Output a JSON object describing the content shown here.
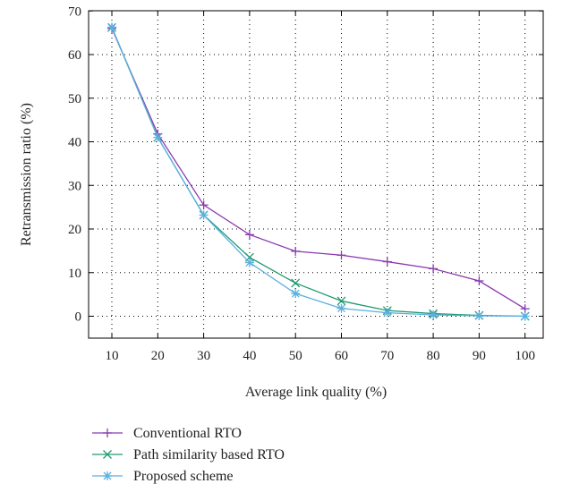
{
  "chart_data": {
    "type": "line",
    "xlabel": "Average link quality (%)",
    "ylabel": "Retransmission ratio (%)",
    "categories": [
      "10",
      "20",
      "30",
      "40",
      "50",
      "60",
      "70",
      "80",
      "90",
      "100"
    ],
    "ylim": [
      -5,
      70
    ],
    "yticks": [
      0,
      10,
      20,
      30,
      40,
      50,
      60,
      70
    ],
    "grid": true,
    "legend_position": "bottom-left",
    "series": [
      {
        "name": "Conventional RTO",
        "marker": "plus",
        "color": "#8a3ab0",
        "values": [
          66.0,
          41.8,
          25.5,
          18.7,
          14.9,
          14.0,
          12.5,
          10.9,
          8.1,
          1.7
        ]
      },
      {
        "name": "Path similarity based RTO",
        "marker": "cross",
        "color": "#1f9a72",
        "values": [
          66.2,
          41.0,
          23.2,
          13.5,
          7.6,
          3.5,
          1.3,
          0.6,
          0.2,
          0.0
        ]
      },
      {
        "name": "Proposed scheme",
        "marker": "asterisk",
        "color": "#5ab0e0",
        "values": [
          66.3,
          41.0,
          23.2,
          12.3,
          5.2,
          1.8,
          0.8,
          0.3,
          0.1,
          0.0
        ]
      }
    ]
  }
}
